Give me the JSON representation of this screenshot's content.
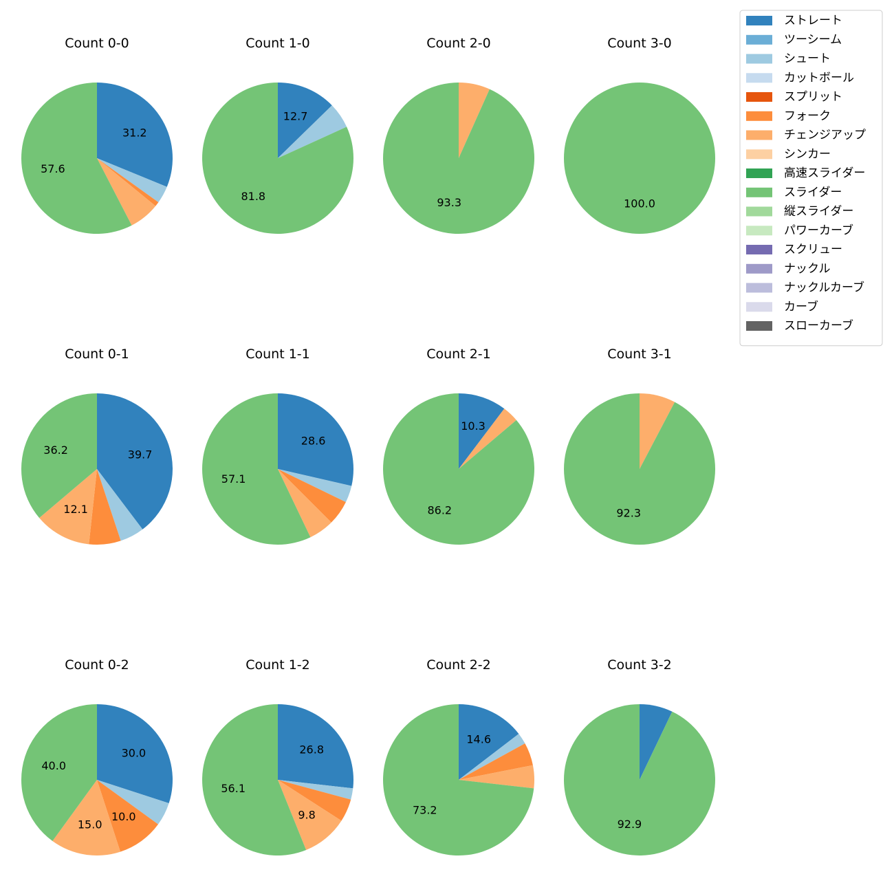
{
  "chart_data": {
    "type": "pie",
    "legend": {
      "location": "top-right",
      "entries": [
        {
          "name": "ストレート",
          "color": "#3182bd"
        },
        {
          "name": "ツーシーム",
          "color": "#6baed6"
        },
        {
          "name": "シュート",
          "color": "#9ecae1"
        },
        {
          "name": "カットボール",
          "color": "#c6dbef"
        },
        {
          "name": "スプリット",
          "color": "#e6550d"
        },
        {
          "name": "フォーク",
          "color": "#fd8d3c"
        },
        {
          "name": "チェンジアップ",
          "color": "#fdae6b"
        },
        {
          "name": "シンカー",
          "color": "#fdd0a2"
        },
        {
          "name": "高速スライダー",
          "color": "#31a354"
        },
        {
          "name": "スライダー",
          "color": "#74c476"
        },
        {
          "name": "縦スライダー",
          "color": "#a1d99b"
        },
        {
          "name": "パワーカーブ",
          "color": "#c7e9c0"
        },
        {
          "name": "スクリュー",
          "color": "#756bb1"
        },
        {
          "name": "ナックル",
          "color": "#9e9ac8"
        },
        {
          "name": "ナックルカーブ",
          "color": "#bcbddc"
        },
        {
          "name": "カーブ",
          "color": "#dadaeb"
        },
        {
          "name": "スローカーブ",
          "color": "#636363"
        }
      ]
    },
    "label_min_percent": 8,
    "pies": [
      {
        "title": "Count 0-0",
        "slices": [
          {
            "pitch": "ストレート",
            "value": 31.2
          },
          {
            "pitch": "シュート",
            "value": 3.7
          },
          {
            "pitch": "フォーク",
            "value": 1.0
          },
          {
            "pitch": "チェンジアップ",
            "value": 6.5
          },
          {
            "pitch": "スライダー",
            "value": 57.6
          }
        ]
      },
      {
        "title": "Count 1-0",
        "slices": [
          {
            "pitch": "ストレート",
            "value": 12.7
          },
          {
            "pitch": "シュート",
            "value": 5.5
          },
          {
            "pitch": "スライダー",
            "value": 81.8
          }
        ]
      },
      {
        "title": "Count 2-0",
        "slices": [
          {
            "pitch": "チェンジアップ",
            "value": 6.7
          },
          {
            "pitch": "スライダー",
            "value": 93.3
          }
        ]
      },
      {
        "title": "Count 3-0",
        "slices": [
          {
            "pitch": "スライダー",
            "value": 100.0
          }
        ]
      },
      {
        "title": "Count 0-1",
        "slices": [
          {
            "pitch": "ストレート",
            "value": 39.7
          },
          {
            "pitch": "シュート",
            "value": 5.2
          },
          {
            "pitch": "フォーク",
            "value": 6.8
          },
          {
            "pitch": "チェンジアップ",
            "value": 12.1
          },
          {
            "pitch": "スライダー",
            "value": 36.2
          }
        ]
      },
      {
        "title": "Count 1-1",
        "slices": [
          {
            "pitch": "ストレート",
            "value": 28.6
          },
          {
            "pitch": "シュート",
            "value": 3.6
          },
          {
            "pitch": "フォーク",
            "value": 5.3
          },
          {
            "pitch": "チェンジアップ",
            "value": 5.4
          },
          {
            "pitch": "スライダー",
            "value": 57.1
          }
        ]
      },
      {
        "title": "Count 2-1",
        "slices": [
          {
            "pitch": "ストレート",
            "value": 10.3
          },
          {
            "pitch": "チェンジアップ",
            "value": 3.5
          },
          {
            "pitch": "スライダー",
            "value": 86.2
          }
        ]
      },
      {
        "title": "Count 3-1",
        "slices": [
          {
            "pitch": "チェンジアップ",
            "value": 7.7
          },
          {
            "pitch": "スライダー",
            "value": 92.3
          }
        ]
      },
      {
        "title": "Count 0-2",
        "slices": [
          {
            "pitch": "ストレート",
            "value": 30.0
          },
          {
            "pitch": "シュート",
            "value": 5.0
          },
          {
            "pitch": "フォーク",
            "value": 10.0
          },
          {
            "pitch": "チェンジアップ",
            "value": 15.0
          },
          {
            "pitch": "スライダー",
            "value": 40.0
          }
        ]
      },
      {
        "title": "Count 1-2",
        "slices": [
          {
            "pitch": "ストレート",
            "value": 26.8
          },
          {
            "pitch": "シュート",
            "value": 2.4
          },
          {
            "pitch": "フォーク",
            "value": 4.9
          },
          {
            "pitch": "チェンジアップ",
            "value": 9.8
          },
          {
            "pitch": "スライダー",
            "value": 56.1
          }
        ]
      },
      {
        "title": "Count 2-2",
        "slices": [
          {
            "pitch": "ストレート",
            "value": 14.6
          },
          {
            "pitch": "シュート",
            "value": 2.4
          },
          {
            "pitch": "フォーク",
            "value": 4.9
          },
          {
            "pitch": "チェンジアップ",
            "value": 4.9
          },
          {
            "pitch": "スライダー",
            "value": 73.2
          }
        ]
      },
      {
        "title": "Count 3-2",
        "slices": [
          {
            "pitch": "ストレート",
            "value": 7.1
          },
          {
            "pitch": "スライダー",
            "value": 92.9
          }
        ]
      }
    ]
  }
}
